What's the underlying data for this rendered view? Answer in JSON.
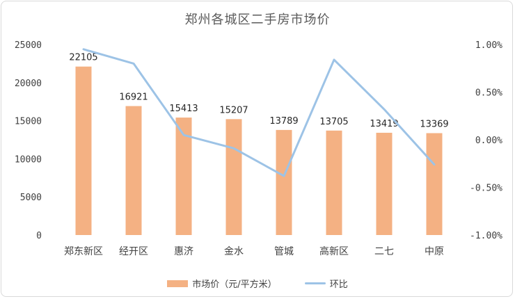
{
  "chart_data": {
    "type": "bar+line",
    "title": "郑州各城区二手房市场价",
    "categories": [
      "郑东新区",
      "经开区",
      "惠济",
      "金水",
      "管城",
      "高新区",
      "二七",
      "中原"
    ],
    "series": [
      {
        "name": "市场价（元/平方米）",
        "type": "bar",
        "axis": "left",
        "color": "#F4B183",
        "values": [
          22105,
          16921,
          15413,
          15207,
          13789,
          13705,
          13419,
          13369
        ],
        "labels": [
          "22105",
          "16921",
          "15413",
          "15207",
          "13789",
          "13705",
          "13419",
          "13369"
        ]
      },
      {
        "name": "环比",
        "type": "line",
        "axis": "right",
        "color": "#9DC3E6",
        "values": [
          0.95,
          0.8,
          0.05,
          -0.09,
          -0.38,
          0.84,
          0.32,
          -0.26
        ]
      }
    ],
    "yleft": {
      "min": 0,
      "max": 25000,
      "ticks": [
        "0",
        "5000",
        "10000",
        "15000",
        "20000",
        "25000"
      ]
    },
    "yright": {
      "min": -1.0,
      "max": 1.0,
      "ticks": [
        "-1.00%",
        "-0.50%",
        "0.00%",
        "0.50%",
        "1.00%"
      ]
    },
    "grid": false,
    "legend_position": "bottom"
  }
}
